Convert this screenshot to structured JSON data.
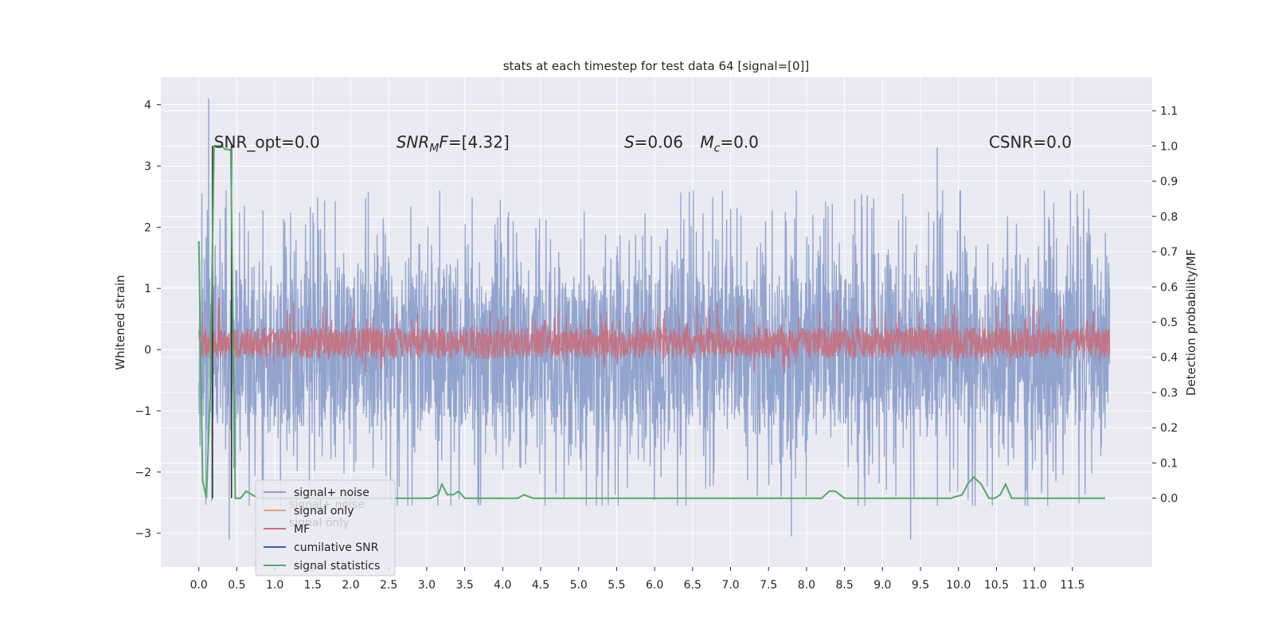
{
  "chart_data": {
    "type": "line",
    "title": "stats at each timestep for test data 64 [signal=[0]]",
    "xlabel": "",
    "ylabel": "Whitened strain",
    "ylabel_right": "Detection probability/MF",
    "xlim": [
      -0.5,
      12.55
    ],
    "ylim": [
      -3.55,
      4.45
    ],
    "ylim_right": [
      -0.195,
      1.195
    ],
    "x_ticks": [
      0.0,
      0.5,
      1.0,
      1.5,
      2.0,
      2.5,
      3.0,
      3.5,
      4.0,
      4.5,
      5.0,
      5.5,
      6.0,
      6.5,
      7.0,
      7.5,
      8.0,
      8.5,
      9.0,
      9.5,
      10.0,
      10.5,
      11.0,
      11.5
    ],
    "x_tick_labels": [
      "0.0",
      "0.5",
      "1.0",
      "1.5",
      "2.0",
      "2.5",
      "3.0",
      "3.5",
      "4.0",
      "4.5",
      "5.0",
      "5.5",
      "6.0",
      "6.5",
      "7.0",
      "7.5",
      "8.0",
      "8.5",
      "9.0",
      "9.5",
      "10.0",
      "10.5",
      "11.0",
      "11.5"
    ],
    "y_ticks": [
      -3,
      -2,
      -1,
      0,
      1,
      2,
      3,
      4
    ],
    "y_tick_labels": [
      "−3",
      "−2",
      "−1",
      "0",
      "1",
      "2",
      "3",
      "4"
    ],
    "y_ticks_right": [
      0.0,
      0.1,
      0.2,
      0.3,
      0.4,
      0.5,
      0.6,
      0.7,
      0.8,
      0.9,
      1.0,
      1.1
    ],
    "y_tick_labels_right": [
      "0.0",
      "0.1",
      "0.2",
      "0.3",
      "0.4",
      "0.5",
      "0.6",
      "0.7",
      "0.8",
      "0.9",
      "1.0",
      "1.1"
    ],
    "grid": true,
    "legend_position": "lower-left",
    "annotations": [
      {
        "text": "SNR_opt=0.0",
        "x": 0.2,
        "y": 3.3
      },
      {
        "text": "SNR_M F=[4.32]",
        "x": 2.6,
        "y": 3.3
      },
      {
        "text": "S=0.06",
        "x": 5.6,
        "y": 3.3
      },
      {
        "text": "M_c=0.0",
        "x": 6.6,
        "y": 3.3
      },
      {
        "text": "CSNR=0.0",
        "x": 10.4,
        "y": 3.3
      }
    ],
    "series": [
      {
        "name": "signal+ noise",
        "color": "#8da0cb",
        "axis": "left",
        "description": "whitened noisy strain, roughly within -2.5..2.5",
        "x_range": [
          0.0,
          11.99
        ],
        "peaks": [
          {
            "x": 0.13,
            "y": 4.1
          },
          {
            "x": 0.4,
            "y": -3.1
          },
          {
            "x": 9.72,
            "y": 3.3
          },
          {
            "x": 9.37,
            "y": -3.1
          },
          {
            "x": 7.8,
            "y": -3.05
          }
        ]
      },
      {
        "name": "signal only",
        "color": "#e0a27a",
        "axis": "left",
        "values": "0 throughout"
      },
      {
        "name": "MF",
        "color": "#c86f7d",
        "axis": "right",
        "description": "matched-filter output, fluctuating about 0.4..0.55",
        "x_range": [
          0.0,
          11.99
        ]
      },
      {
        "name": "cumilative SNR",
        "color": "#3a5aa8",
        "axis": "right",
        "values": "0 throughout"
      },
      {
        "name": "signal statistics",
        "color": "#55a868",
        "axis": "right",
        "x": [
          0.0,
          0.05,
          0.1,
          0.15,
          0.2,
          0.25,
          0.3,
          0.35,
          0.42,
          0.48,
          0.55,
          0.62,
          0.7,
          0.78,
          0.9,
          1.1,
          1.5,
          2.0,
          2.5,
          2.9,
          3.05,
          3.15,
          3.2,
          3.27,
          3.35,
          3.42,
          3.5,
          3.8,
          4.2,
          4.28,
          4.4,
          4.6,
          5.0,
          6.0,
          7.0,
          8.0,
          8.2,
          8.3,
          8.38,
          8.5,
          9.0,
          9.6,
          9.9,
          10.05,
          10.12,
          10.2,
          10.3,
          10.4,
          10.48,
          10.55,
          10.62,
          10.7,
          11.0,
          11.5,
          11.93
        ],
        "y": [
          0.73,
          0.05,
          0.0,
          0.3,
          1.0,
          1.0,
          1.0,
          0.99,
          0.99,
          0.0,
          0.0,
          0.02,
          0.01,
          0.0,
          0.0,
          0.0,
          0.0,
          0.0,
          0.0,
          0.0,
          0.0,
          0.01,
          0.04,
          0.01,
          0.01,
          0.02,
          0.0,
          0.0,
          0.0,
          0.01,
          0.0,
          0.0,
          0.0,
          0.0,
          0.0,
          0.0,
          0.0,
          0.02,
          0.02,
          0.0,
          0.0,
          0.0,
          0.0,
          0.01,
          0.04,
          0.06,
          0.04,
          0.0,
          0.0,
          0.01,
          0.04,
          0.0,
          0.0,
          0.0,
          0.0
        ]
      }
    ]
  },
  "legend": {
    "items": [
      {
        "label": "signal+ noise",
        "color": "#8da0cb"
      },
      {
        "label": "signal only",
        "color": "#e0a27a"
      },
      {
        "label": "MF",
        "color": "#c86f7d"
      },
      {
        "label": "cumilative SNR",
        "color": "#3a5aa8"
      },
      {
        "label": "signal statistics",
        "color": "#55a868"
      }
    ],
    "ghost_labels": [
      "signal+ noise",
      "signal only"
    ]
  },
  "colors": {
    "plot_background": "#eaeaf2",
    "grid": "#ffffff",
    "text": "#262626"
  }
}
